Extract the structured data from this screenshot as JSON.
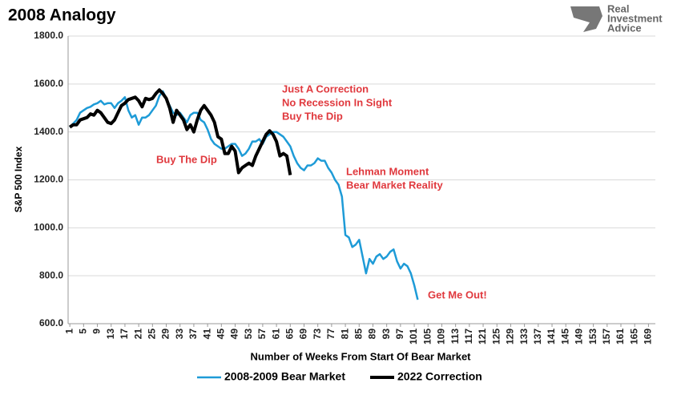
{
  "chart_data": {
    "type": "line",
    "title": "2008 Analogy",
    "logo": [
      "Real",
      "Investment",
      "Advice"
    ],
    "x_label": "Number of Weeks From Start Of Bear Market",
    "y_label": "S&P 500 Index",
    "x": [
      1,
      2,
      3,
      4,
      5,
      6,
      7,
      8,
      9,
      10,
      11,
      12,
      13,
      14,
      15,
      16,
      17,
      18,
      19,
      20,
      21,
      22,
      23,
      24,
      25,
      26,
      27,
      28,
      29,
      30,
      31,
      32,
      33,
      34,
      35,
      36,
      37,
      38,
      39,
      40,
      41,
      42,
      43,
      44,
      45,
      46,
      47,
      48,
      49,
      50,
      51,
      52,
      53,
      54,
      55,
      56,
      57,
      58,
      59,
      60,
      61,
      62,
      63,
      64,
      65,
      66,
      67,
      68,
      69,
      70,
      71,
      72,
      73,
      74,
      75,
      76,
      77,
      78,
      79,
      80,
      81,
      82,
      83,
      84,
      85,
      86,
      87,
      88,
      89,
      90,
      91,
      92,
      93,
      94,
      95,
      96,
      97,
      98,
      99,
      100,
      101,
      102
    ],
    "series": [
      {
        "name": "2008-2009 Bear Market",
        "color": "#1e9bd7",
        "width": 2.5,
        "values": [
          1420,
          1435,
          1450,
          1480,
          1490,
          1500,
          1505,
          1515,
          1520,
          1530,
          1515,
          1520,
          1520,
          1500,
          1520,
          1530,
          1545,
          1490,
          1460,
          1470,
          1430,
          1460,
          1460,
          1470,
          1490,
          1510,
          1550,
          1570,
          1540,
          1510,
          1480,
          1470,
          1480,
          1460,
          1440,
          1470,
          1480,
          1480,
          1450,
          1440,
          1410,
          1370,
          1350,
          1340,
          1330,
          1330,
          1340,
          1350,
          1350,
          1330,
          1300,
          1310,
          1330,
          1360,
          1360,
          1370,
          1350,
          1380,
          1390,
          1400,
          1400,
          1390,
          1380,
          1360,
          1340,
          1300,
          1270,
          1250,
          1240,
          1260,
          1260,
          1270,
          1290,
          1280,
          1280,
          1250,
          1230,
          1200,
          1180,
          1130,
          970,
          960,
          920,
          930,
          950,
          880,
          810,
          870,
          850,
          880,
          890,
          870,
          880,
          900,
          910,
          860,
          830,
          850,
          840,
          810,
          760,
          700
        ]
      },
      {
        "name": "2022 Correction",
        "color": "#000000",
        "width": 4,
        "values": [
          1420,
          1430,
          1430,
          1450,
          1455,
          1460,
          1475,
          1470,
          1490,
          1480,
          1460,
          1440,
          1435,
          1450,
          1480,
          1510,
          1520,
          1535,
          1540,
          1545,
          1530,
          1505,
          1540,
          1535,
          1540,
          1560,
          1575,
          1560,
          1540,
          1500,
          1440,
          1490,
          1470,
          1450,
          1410,
          1430,
          1400,
          1450,
          1490,
          1510,
          1490,
          1470,
          1440,
          1380,
          1370,
          1310,
          1310,
          1340,
          1320,
          1230,
          1250,
          1260,
          1270,
          1260,
          1300,
          1330,
          1360,
          1390,
          1405,
          1390,
          1360,
          1300,
          1310,
          1300,
          1220,
          null,
          null,
          null,
          null,
          null,
          null,
          null,
          null,
          null,
          null,
          null,
          null,
          null,
          null,
          null,
          null,
          null,
          null,
          null,
          null,
          null,
          null,
          null,
          null,
          null,
          null,
          null,
          null,
          null,
          null,
          null,
          null,
          null,
          null,
          null,
          null,
          null
        ]
      }
    ],
    "xlim": [
      0.5,
      171
    ],
    "xticks": [
      1,
      5,
      9,
      13,
      17,
      21,
      25,
      29,
      33,
      37,
      41,
      45,
      49,
      53,
      57,
      61,
      65,
      69,
      73,
      77,
      81,
      85,
      89,
      93,
      97,
      101,
      105,
      109,
      113,
      117,
      121,
      125,
      129,
      133,
      137,
      141,
      145,
      149,
      153,
      157,
      161,
      165,
      169
    ],
    "ylim": [
      600,
      1800
    ],
    "yticks": [
      {
        "value": 600,
        "label": "600.0"
      },
      {
        "value": 800,
        "label": "800.0"
      },
      {
        "value": 1000,
        "label": "1000.0"
      },
      {
        "value": 1200,
        "label": "1200.0"
      },
      {
        "value": 1400,
        "label": "1400.0"
      },
      {
        "value": 1600,
        "label": "1600.0"
      },
      {
        "value": 1800,
        "label": "1800.0"
      }
    ],
    "grid": true,
    "legend": "bottom",
    "annotations": [
      [
        "Just A Correction",
        "No Recession In Sight",
        "Buy The Dip"
      ],
      [
        "Buy The Dip"
      ],
      [
        "Lehman Moment",
        "Bear Market Reality"
      ],
      [
        "Get Me Out!"
      ]
    ]
  }
}
